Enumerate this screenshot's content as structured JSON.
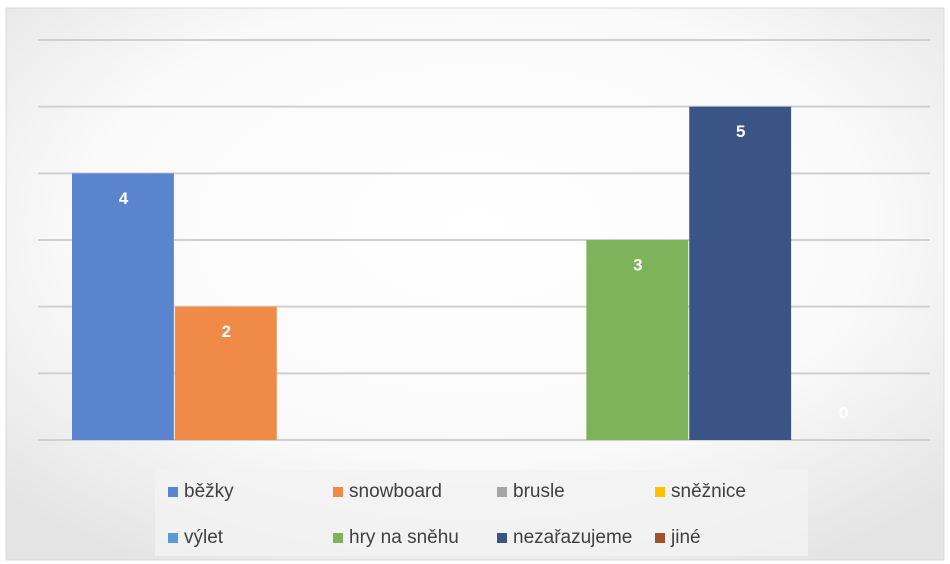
{
  "chart_data": {
    "type": "bar",
    "series": [
      {
        "name": "běžky",
        "color": "#5b84cf",
        "values": [
          4
        ]
      },
      {
        "name": "snowboard",
        "color": "#ef8a47",
        "values": [
          2
        ]
      },
      {
        "name": "brusle",
        "color": "#a5a5a5",
        "values": [
          null
        ]
      },
      {
        "name": "sněžnice",
        "color": "#ffc000",
        "values": [
          null
        ]
      },
      {
        "name": "výlet",
        "color": "#5b9bd5",
        "values": [
          null
        ]
      },
      {
        "name": "hry na sněhu",
        "color": "#7db35a",
        "values": [
          3
        ]
      },
      {
        "name": "nezařazujeme",
        "color": "#3a5486",
        "values": [
          5
        ]
      },
      {
        "name": "jiné",
        "color": "#a0522d",
        "values": [
          0
        ]
      }
    ],
    "ylim": [
      0,
      6
    ],
    "yticks": [
      0,
      1,
      2,
      3,
      4,
      5,
      6
    ],
    "grid": true,
    "legend": "bottom"
  }
}
